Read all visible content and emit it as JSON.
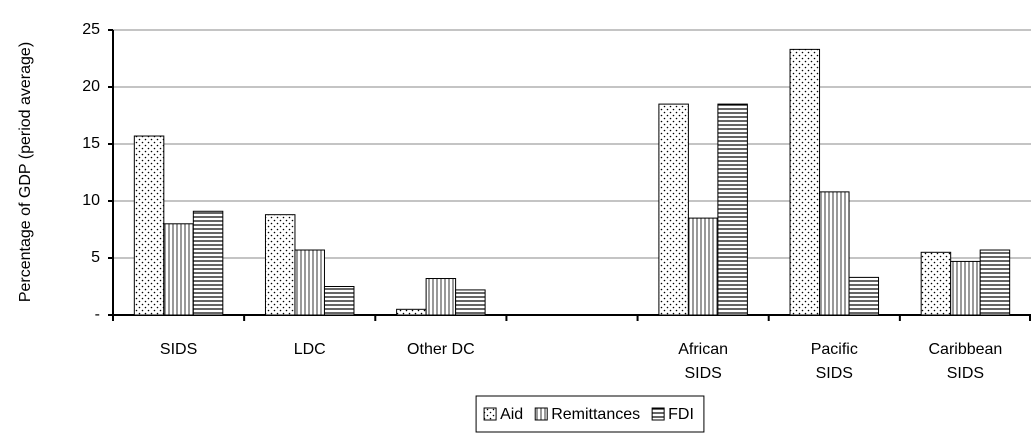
{
  "chart_data": {
    "type": "bar",
    "y_label": "Percentage of GDP (period average)",
    "categories": [
      "SIDS",
      "LDC",
      "Other DC",
      null,
      "African SIDS",
      "Pacific SIDS",
      "Caribbean SIDS"
    ],
    "series": [
      {
        "name": "Aid",
        "values": [
          15.7,
          8.8,
          0.5,
          null,
          18.5,
          23.3,
          5.5
        ]
      },
      {
        "name": "Remittances",
        "values": [
          8.0,
          5.7,
          3.2,
          null,
          8.5,
          10.8,
          4.7
        ]
      },
      {
        "name": "FDI",
        "values": [
          9.1,
          2.5,
          2.2,
          null,
          18.5,
          3.3,
          5.7
        ]
      }
    ],
    "ylim": [
      0,
      25
    ],
    "yticks": [
      {
        "value": 0,
        "label": "-"
      },
      5,
      10,
      15,
      20,
      25
    ],
    "grid": true,
    "legend": "bottom"
  }
}
